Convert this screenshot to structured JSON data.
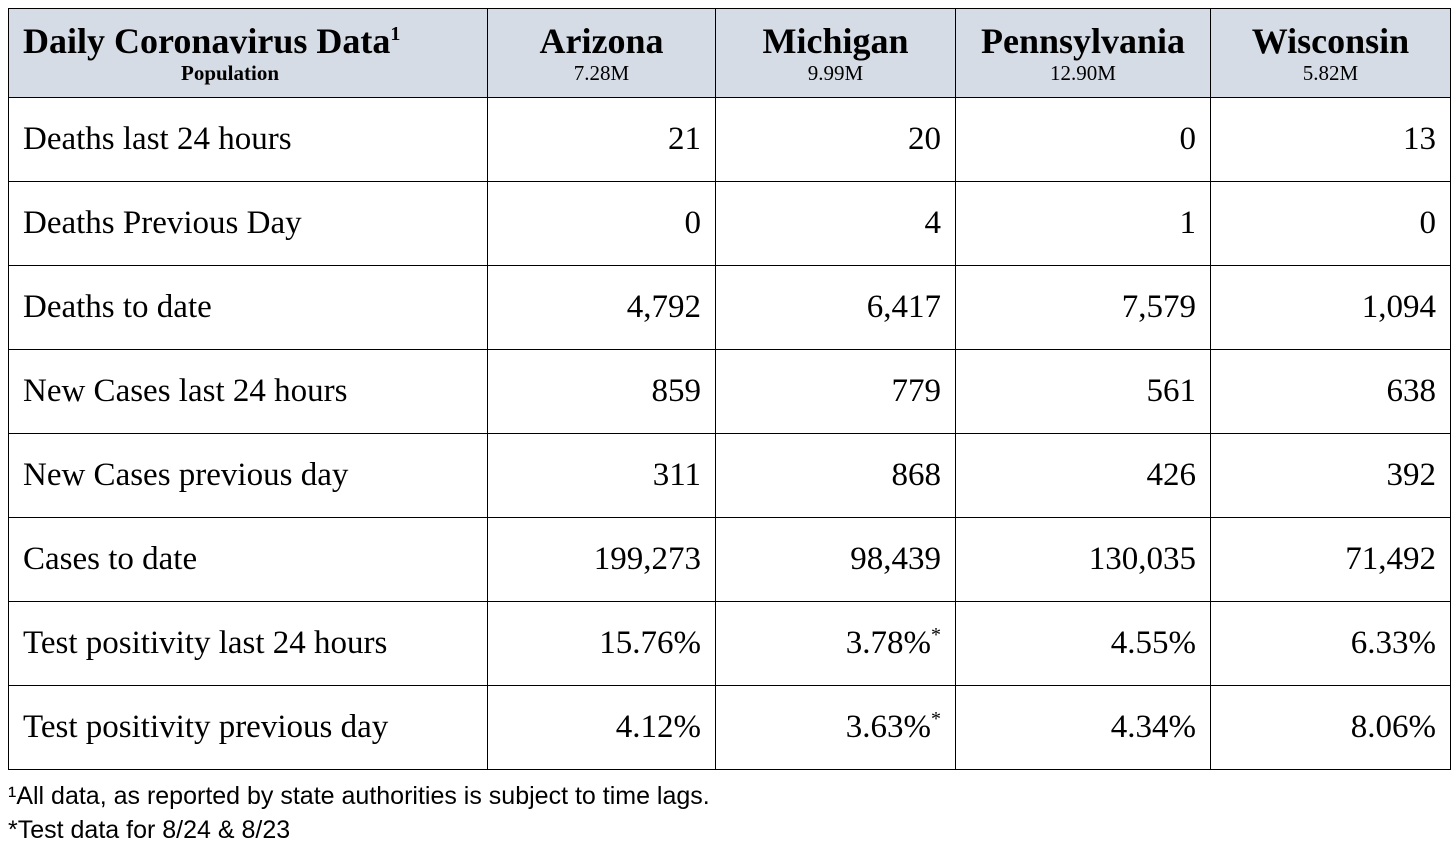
{
  "header": {
    "title": "Daily Coronavirus Data",
    "title_sup": "1",
    "subtitle": "Population"
  },
  "states": [
    {
      "name": "Arizona",
      "population": "7.28M"
    },
    {
      "name": "Michigan",
      "population": "9.99M"
    },
    {
      "name": "Pennsylvania",
      "population": "12.90M"
    },
    {
      "name": "Wisconsin",
      "population": "5.82M"
    }
  ],
  "rows": [
    {
      "label": "Deaths last 24 hours",
      "values": [
        "21",
        "20",
        "0",
        "13"
      ],
      "marks": [
        "",
        "",
        "",
        ""
      ]
    },
    {
      "label": "Deaths Previous Day",
      "values": [
        "0",
        "4",
        "1",
        "0"
      ],
      "marks": [
        "",
        "",
        "",
        ""
      ]
    },
    {
      "label": "Deaths to date",
      "values": [
        "4,792",
        "6,417",
        "7,579",
        "1,094"
      ],
      "marks": [
        "",
        "",
        "",
        ""
      ]
    },
    {
      "label": "New Cases last 24 hours",
      "values": [
        "859",
        "779",
        "561",
        "638"
      ],
      "marks": [
        "",
        "",
        "",
        ""
      ]
    },
    {
      "label": "New Cases previous day",
      "values": [
        "311",
        "868",
        "426",
        "392"
      ],
      "marks": [
        "",
        "",
        "",
        ""
      ]
    },
    {
      "label": "Cases to date",
      "values": [
        "199,273",
        "98,439",
        "130,035",
        "71,492"
      ],
      "marks": [
        "",
        "",
        "",
        ""
      ]
    },
    {
      "label": "Test positivity last 24 hours",
      "values": [
        "15.76%",
        "3.78%",
        "4.55%",
        "6.33%"
      ],
      "marks": [
        "",
        "*",
        "",
        ""
      ]
    },
    {
      "label": "Test positivity previous day",
      "values": [
        "4.12%",
        "3.63%",
        "4.34%",
        "8.06%"
      ],
      "marks": [
        "",
        "*",
        "",
        ""
      ]
    }
  ],
  "footnotes": {
    "note1": "¹All data, as reported by state authorities is subject to time lags.",
    "note2": "*Test data for 8/24 & 8/23"
  }
}
